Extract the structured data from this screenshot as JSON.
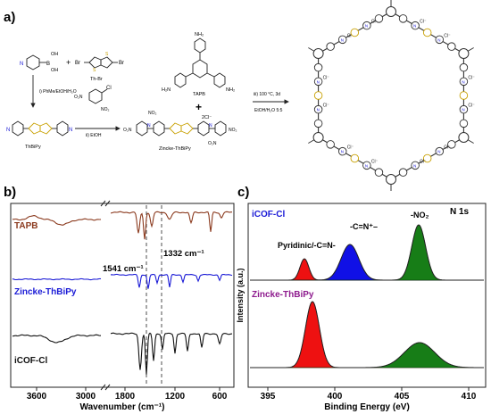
{
  "panel_a": {
    "label": "a)",
    "reagents": {
      "boronic_acid": {
        "oh1": "OH",
        "b": "B",
        "oh2": "OH"
      },
      "plus": "+",
      "thbr": {
        "br_left": "Br",
        "br_right": "Br",
        "name": "Th-Br"
      },
      "step1": "i) PhMe/EtOH/H₂O",
      "thbipy": "ThBiPy",
      "chloro": {
        "cl": "Cl",
        "no2a": "NO₂",
        "no2b": "O₂N"
      },
      "step2": "ii) EtOH",
      "tapb": {
        "nh2_top": "NH₂",
        "nh2_left": "H₂N",
        "nh2_right": "NH₂",
        "name": "TAPB"
      },
      "plus2": "+",
      "zincke": {
        "charge": "2Cl⁻",
        "no2_left": "O₂N",
        "no2_top_left": "NO₂",
        "no2_right": "NO₂",
        "no2_bottom": "O₂N",
        "name": "Zincke-ThBiPy"
      },
      "step3_line1": "iii) 100 °C, 3d",
      "step3_line2": "EtOH/H₂O 5:5"
    },
    "framework": {
      "counter_ion": "Cl⁻",
      "cation": "N",
      "plus": "+"
    }
  },
  "panel_b": {
    "label": "b)",
    "xlabel": "Wavenumber (cm⁻¹)",
    "ticks": [
      "3600",
      "3000",
      "1800",
      "1200",
      "600"
    ],
    "traces": [
      {
        "name": "TAPB",
        "color": "#8b3a1e"
      },
      {
        "name": "Zincke-ThBiPy",
        "color": "#1a1ad6"
      },
      {
        "name": "iCOF-Cl",
        "color": "#111111"
      }
    ],
    "annotations": {
      "a1541": "1541 cm⁻¹",
      "a1332": "1332 cm⁻¹"
    }
  },
  "panel_c": {
    "label": "c)",
    "xlabel": "Binding Energy (eV)",
    "ylabel": "Intensity (a.u.)",
    "ticks": [
      "395",
      "400",
      "405",
      "410"
    ],
    "corner": "N 1s",
    "top_trace": "iCOF-Cl",
    "top_trace_color": "#1a1ad6",
    "bottom_trace": "Zincke-ThBiPy",
    "bottom_trace_color": "#8e1b8e",
    "peaks": {
      "p1": "Pyridinic/-C=N-",
      "p2": "-C=N⁺–",
      "p3": "-NO₂"
    }
  }
}
